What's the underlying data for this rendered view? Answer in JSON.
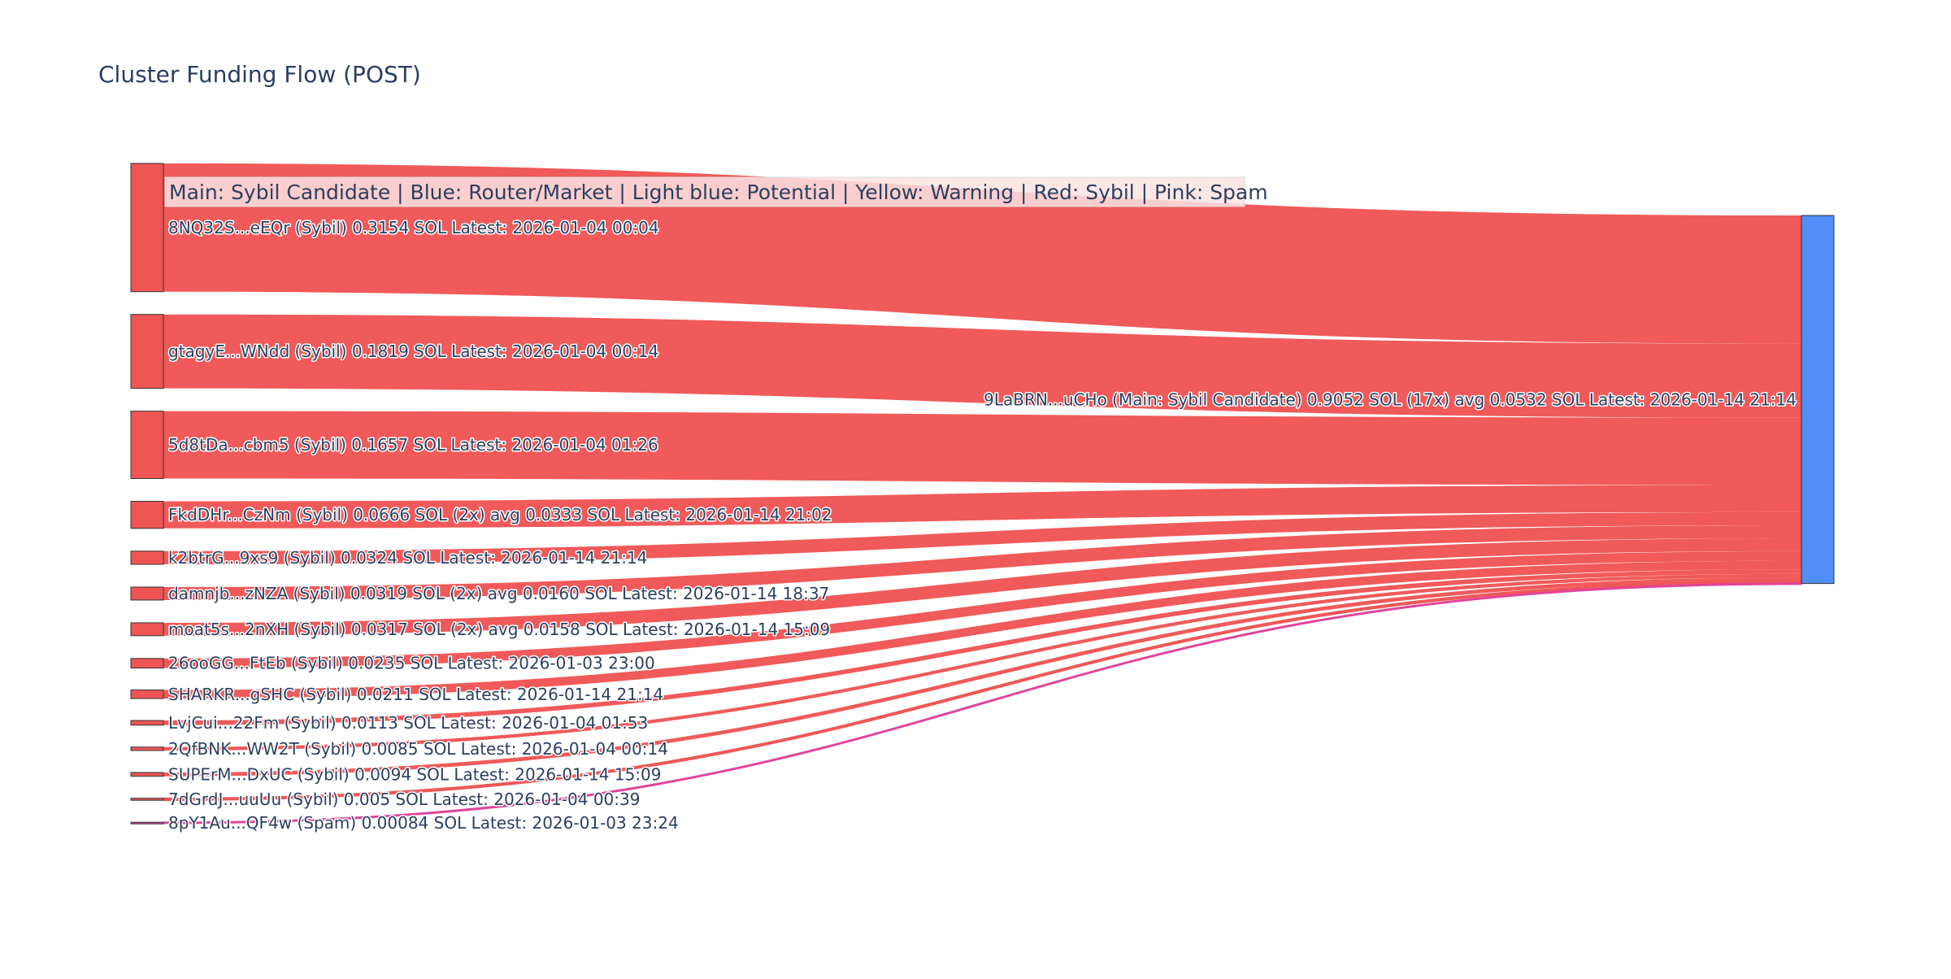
{
  "chart_data": {
    "type": "sankey",
    "title": "Cluster Funding Flow (POST)",
    "legend": {
      "text": "Main: Sybil Candidate  |  Blue: Router/Market | Light blue: Potential | Yellow: Warning | Red: Sybil | Pink: Spam",
      "placement": "top-left"
    },
    "colors": {
      "sybil": "#ef5555",
      "spam": "#e0449a",
      "target": "#4f8ff7",
      "node_border": "#333333",
      "legend_bg": "#fbe3e3",
      "text": "#2a3f5f"
    },
    "target": {
      "label": "9LaBRN...uCHo (Main: Sybil Candidate) 0.9052 SOL (17x) avg 0.0532 SOL Latest: 2026-01-14 21:14",
      "value": 0.9052
    },
    "sources": [
      {
        "label": "8NQ32S...eEQr (Sybil) 0.3154 SOL Latest: 2026-01-04 00:04",
        "value": 0.3154,
        "category": "sybil"
      },
      {
        "label": "gtagyE...WNdd (Sybil) 0.1819 SOL Latest: 2026-01-04 00:14",
        "value": 0.1819,
        "category": "sybil"
      },
      {
        "label": "5d8tDa...cbm5 (Sybil) 0.1657 SOL Latest: 2026-01-04 01:26",
        "value": 0.1657,
        "category": "sybil"
      },
      {
        "label": "FkdDHr...CzNm (Sybil) 0.0666 SOL (2x) avg 0.0333 SOL Latest: 2026-01-14 21:02",
        "value": 0.0666,
        "category": "sybil"
      },
      {
        "label": "k2btrG...9xs9 (Sybil) 0.0324 SOL Latest: 2026-01-14 21:14",
        "value": 0.0324,
        "category": "sybil"
      },
      {
        "label": "damnjb...zNZA (Sybil) 0.0319 SOL (2x) avg 0.0160 SOL Latest: 2026-01-14 18:37",
        "value": 0.0319,
        "category": "sybil"
      },
      {
        "label": "moat5s...2nXH (Sybil) 0.0317 SOL (2x) avg 0.0158 SOL Latest: 2026-01-14 15:09",
        "value": 0.0317,
        "category": "sybil"
      },
      {
        "label": "26ooGG...FtEb (Sybil) 0.0235 SOL Latest: 2026-01-03 23:00",
        "value": 0.0235,
        "category": "sybil"
      },
      {
        "label": "SHARKR...gSHC (Sybil) 0.0211 SOL Latest: 2026-01-14 21:14",
        "value": 0.0211,
        "category": "sybil"
      },
      {
        "label": "LvjCui...22Fm (Sybil) 0.0113 SOL Latest: 2026-01-04 01:53",
        "value": 0.0113,
        "category": "sybil"
      },
      {
        "label": "2QfBNK...WW2T (Sybil) 0.0085 SOL Latest: 2026-01-04 00:14",
        "value": 0.0085,
        "category": "sybil"
      },
      {
        "label": "SUPErM...DxUC (Sybil) 0.0094 SOL Latest: 2026-01-14 15:09",
        "value": 0.0094,
        "category": "sybil"
      },
      {
        "label": "7dGrdJ...uuUu (Sybil) 0.005 SOL Latest: 2026-01-04 00:39",
        "value": 0.005,
        "category": "sybil"
      },
      {
        "label": "8pY1Au...QF4w (Spam) 0.00084 SOL Latest: 2026-01-03 23:24",
        "value": 0.00084,
        "category": "spam"
      }
    ]
  }
}
